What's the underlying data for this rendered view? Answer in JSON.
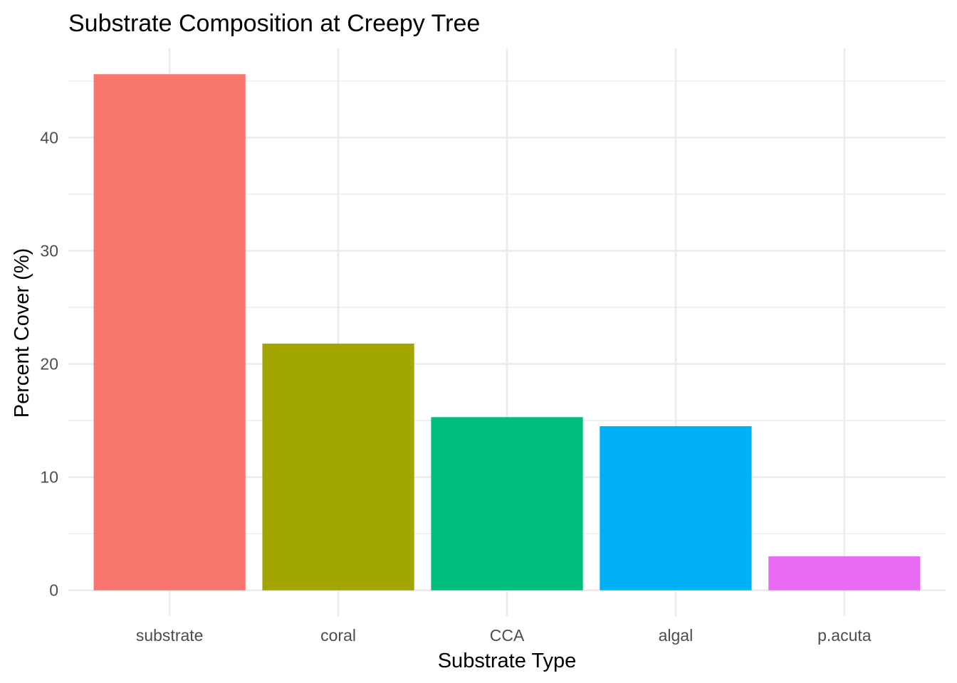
{
  "chart_data": {
    "type": "bar",
    "title": "Substrate Composition at Creepy Tree",
    "xlabel": "Substrate Type",
    "ylabel": "Percent Cover (%)",
    "categories": [
      "substrate",
      "coral",
      "CCA",
      "algal",
      "p.acuta"
    ],
    "values": [
      45.6,
      21.8,
      15.3,
      14.5,
      3.0
    ],
    "colors": [
      "#F8766D",
      "#A3A500",
      "#00BF7D",
      "#00B0F6",
      "#E76BF3"
    ],
    "ylim": [
      -2.28,
      47.88
    ],
    "yticks": [
      0,
      10,
      20,
      30,
      40
    ],
    "ytick_labels": [
      "0",
      "10",
      "20",
      "30",
      "40"
    ],
    "grid": true,
    "legend": "none"
  }
}
